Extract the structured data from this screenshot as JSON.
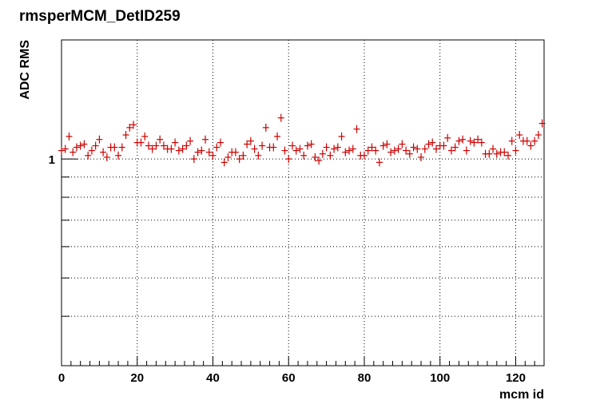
{
  "chart_data": {
    "type": "scatter",
    "title": "rmsperMCM_DetID259",
    "xlabel": "mcm id",
    "ylabel": "ADC RMS",
    "xlim": [
      0,
      127.5
    ],
    "ylim": [
      0.3,
      2.0
    ],
    "y_scale": "log",
    "grid": true,
    "marker_color": "#cc0000",
    "x_ticks": [
      0,
      20,
      40,
      60,
      80,
      100,
      120
    ],
    "x_tick_labels": [
      "0",
      "20",
      "40",
      "60",
      "80",
      "100",
      "120"
    ],
    "y_ticks": [
      1
    ],
    "y_tick_labels": [
      "1"
    ],
    "series": [
      {
        "x": [
          0,
          1,
          2,
          3,
          4,
          5,
          6,
          7,
          8,
          9,
          10,
          11,
          12,
          13,
          14,
          15,
          16,
          17,
          18,
          19,
          20,
          21,
          22,
          23,
          24,
          25,
          26,
          27,
          28,
          29,
          30,
          31,
          32,
          33,
          34,
          35,
          36,
          37,
          38,
          39,
          40,
          41,
          42,
          43,
          44,
          45,
          46,
          47,
          48,
          49,
          50,
          51,
          52,
          53,
          54,
          55,
          56,
          57,
          58,
          59,
          60,
          61,
          62,
          63,
          64,
          65,
          66,
          67,
          68,
          69,
          70,
          71,
          72,
          73,
          74,
          75,
          76,
          77,
          78,
          79,
          80,
          81,
          82,
          83,
          84,
          85,
          86,
          87,
          88,
          89,
          90,
          91,
          92,
          93,
          94,
          95,
          96,
          97,
          98,
          99,
          100,
          101,
          102,
          103,
          104,
          105,
          106,
          107,
          108,
          109,
          110,
          111,
          112,
          113,
          114,
          115,
          116,
          117,
          118,
          119,
          120,
          121,
          122,
          123,
          124,
          125,
          126,
          127
        ],
        "y": [
          1.05,
          1.06,
          1.14,
          1.04,
          1.07,
          1.08,
          1.09,
          1.02,
          1.05,
          1.08,
          1.12,
          1.04,
          1.01,
          1.07,
          1.07,
          1.02,
          1.07,
          1.15,
          1.2,
          1.22,
          1.1,
          1.1,
          1.14,
          1.08,
          1.06,
          1.08,
          1.12,
          1.08,
          1.06,
          1.06,
          1.1,
          1.05,
          1.06,
          1.08,
          1.11,
          1.0,
          1.04,
          1.05,
          1.12,
          1.04,
          1.02,
          1.07,
          1.1,
          0.98,
          1.01,
          1.04,
          1.04,
          1.0,
          1.02,
          1.09,
          1.11,
          1.06,
          1.02,
          1.08,
          1.2,
          1.07,
          1.07,
          1.14,
          1.27,
          1.05,
          1.0,
          1.08,
          1.05,
          1.06,
          1.02,
          1.08,
          1.09,
          1.01,
          0.99,
          1.03,
          1.07,
          1.02,
          1.06,
          1.07,
          1.14,
          1.04,
          1.05,
          1.06,
          1.19,
          1.02,
          1.02,
          1.05,
          1.07,
          1.05,
          0.98,
          1.08,
          1.09,
          1.04,
          1.05,
          1.06,
          1.09,
          1.05,
          1.03,
          1.07,
          1.06,
          1.01,
          1.06,
          1.09,
          1.1,
          1.06,
          1.08,
          1.08,
          1.13,
          1.05,
          1.07,
          1.11,
          1.12,
          1.05,
          1.11,
          1.1,
          1.12,
          1.1,
          1.03,
          1.03,
          1.06,
          1.03,
          1.04,
          1.04,
          1.02,
          1.11,
          1.05,
          1.15,
          1.11,
          1.11,
          1.08,
          1.11,
          1.15,
          1.23
        ]
      }
    ]
  }
}
